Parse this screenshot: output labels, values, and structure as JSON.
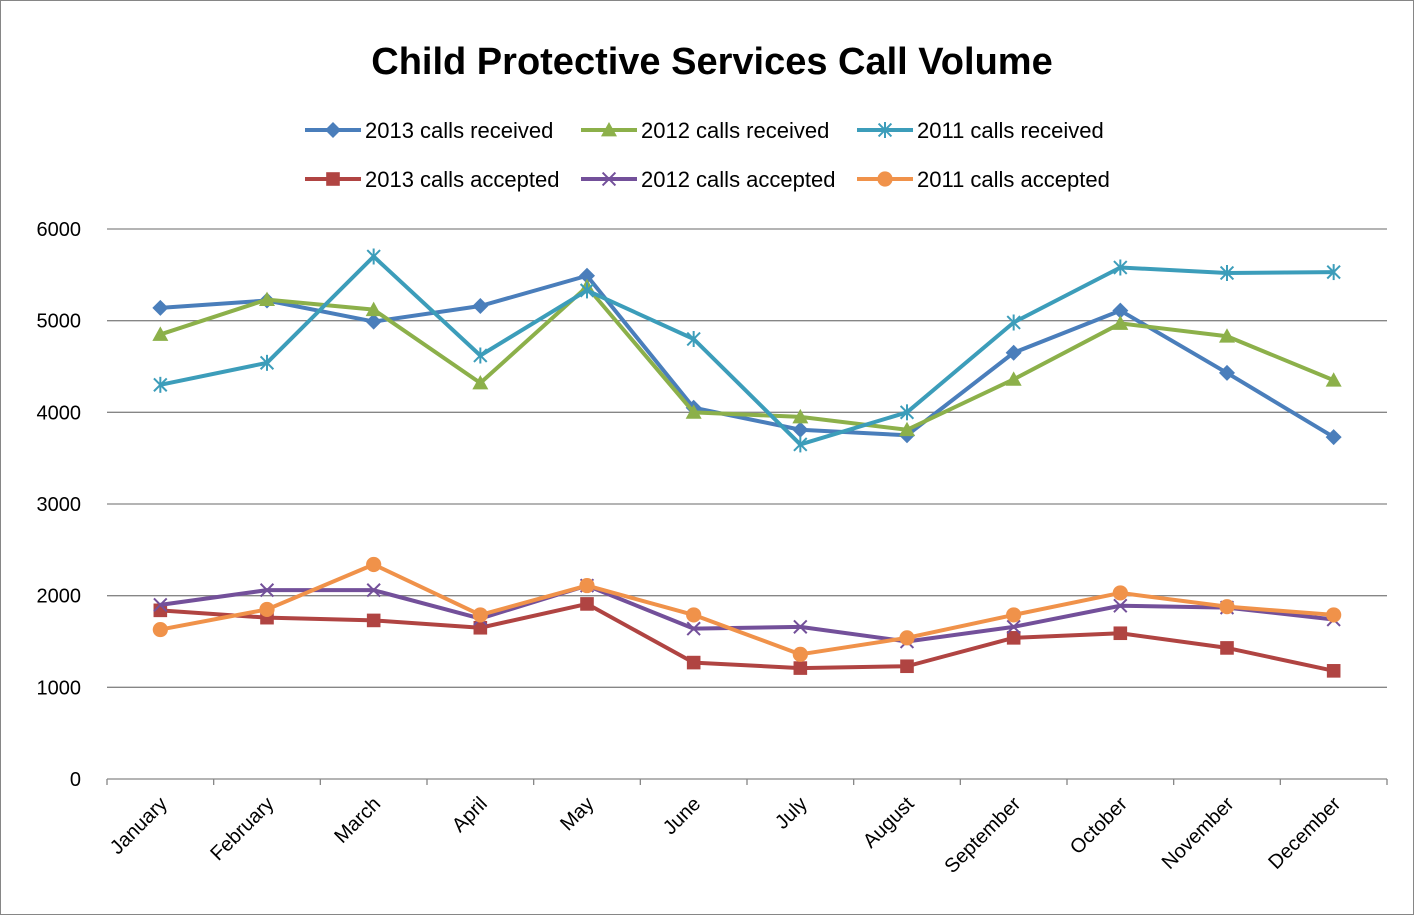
{
  "chart_data": {
    "type": "line",
    "title": "Child Protective Services Call Volume",
    "xlabel": "",
    "ylabel": "",
    "ylim": [
      0,
      6000
    ],
    "yticks": [
      0,
      1000,
      2000,
      3000,
      4000,
      5000,
      6000
    ],
    "grid": "horizontal",
    "legend_position": "top",
    "categories": [
      "January",
      "February",
      "March",
      "April",
      "May",
      "June",
      "July",
      "August",
      "September",
      "October",
      "November",
      "December"
    ],
    "series": [
      {
        "name": "2013 calls received",
        "color": "#4a7ebb",
        "marker": "diamond",
        "values": [
          5140,
          5220,
          4990,
          5160,
          5490,
          4050,
          3810,
          3750,
          4650,
          5110,
          4430,
          3730
        ]
      },
      {
        "name": "2012 calls received",
        "color": "#8cb04a",
        "marker": "triangle",
        "values": [
          4850,
          5230,
          5120,
          4320,
          5370,
          4000,
          3950,
          3810,
          4360,
          4970,
          4830,
          4350
        ]
      },
      {
        "name": "2011 calls received",
        "color": "#3c9dba",
        "marker": "asterisk",
        "values": [
          4300,
          4540,
          5700,
          4620,
          5330,
          4800,
          3650,
          4000,
          4980,
          5580,
          5520,
          5530
        ]
      },
      {
        "name": "2013 calls accepted",
        "color": "#b04442",
        "marker": "square",
        "values": [
          1840,
          1760,
          1730,
          1650,
          1910,
          1270,
          1210,
          1230,
          1540,
          1590,
          1430,
          1180
        ]
      },
      {
        "name": "2012 calls accepted",
        "color": "#73509a",
        "marker": "x",
        "values": [
          1900,
          2060,
          2060,
          1750,
          2110,
          1640,
          1660,
          1500,
          1660,
          1890,
          1870,
          1740
        ]
      },
      {
        "name": "2011 calls accepted",
        "color": "#f0924a",
        "marker": "circle",
        "values": [
          1630,
          1850,
          2340,
          1790,
          2110,
          1790,
          1360,
          1540,
          1790,
          2030,
          1880,
          1790
        ]
      }
    ]
  }
}
